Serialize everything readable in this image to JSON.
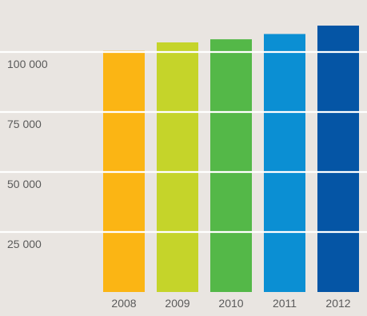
{
  "chart_data": {
    "type": "bar",
    "categories": [
      "2008",
      "2009",
      "2010",
      "2011",
      "2012"
    ],
    "values": [
      100500,
      104000,
      105300,
      107500,
      111000
    ],
    "colors": [
      "#fbb514",
      "#c5d42a",
      "#54b848",
      "#0b8fd3",
      "#0555a5"
    ],
    "ylim": [
      0,
      116000
    ],
    "yticks": [
      {
        "value": 25000,
        "label": "25 000"
      },
      {
        "value": 50000,
        "label": "50 000"
      },
      {
        "value": 75000,
        "label": "75 000"
      },
      {
        "value": 100000,
        "label": "100 000"
      }
    ],
    "grid": true,
    "gridline_color": "#ffffff",
    "tick_label_color": "#5a5a5a"
  }
}
